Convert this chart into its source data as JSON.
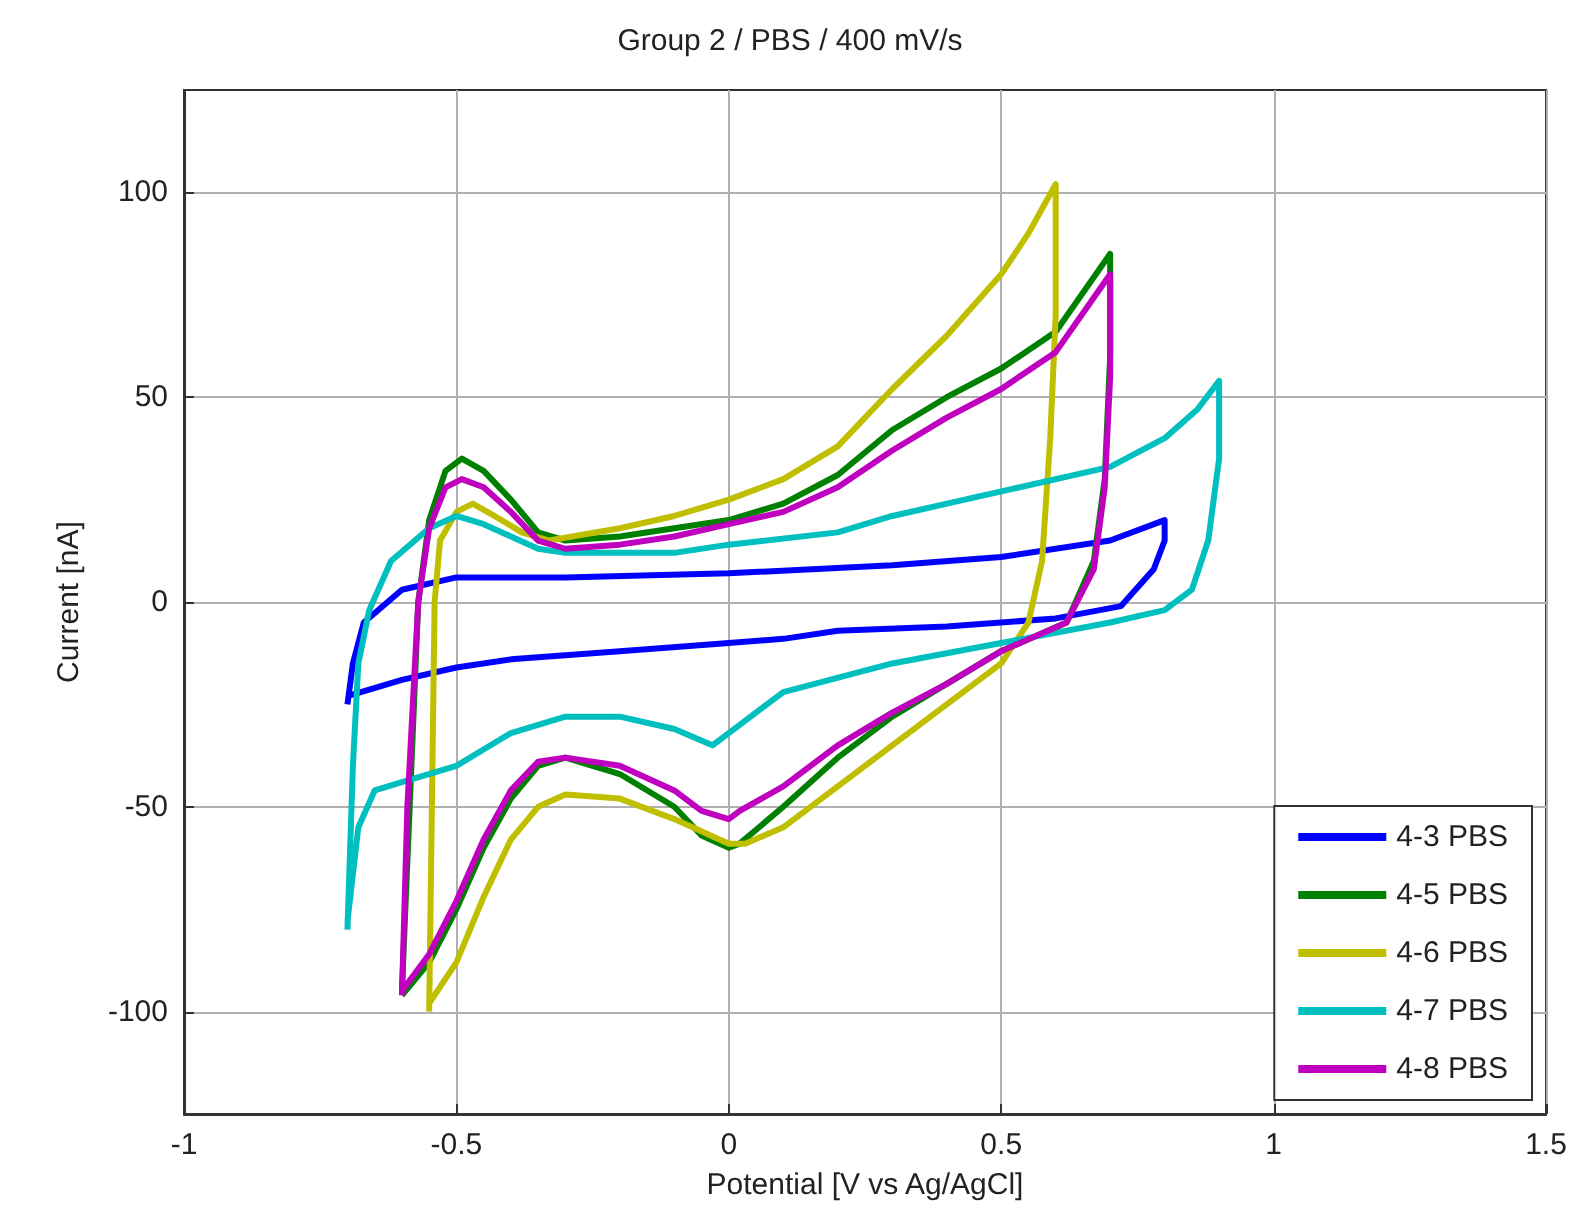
{
  "chart_data": {
    "type": "line",
    "title": "Group 2 / PBS / 400 mV/s",
    "xlabel": "Potential [V vs Ag/AgCl]",
    "ylabel": "Current [nA]",
    "xlim": [
      -1,
      1.5
    ],
    "xticks": [
      -1,
      -0.5,
      0,
      0.5,
      1,
      1.5
    ],
    "ylim": [
      -125,
      125
    ],
    "yticks": [
      -100,
      -50,
      0,
      50,
      100
    ],
    "grid": true,
    "legend": "bottom right",
    "marker": "none",
    "line_style": "solid",
    "series": [
      {
        "name": "4-3 PBS",
        "color": "#0000ff",
        "x": [
          -0.7,
          -0.69,
          -0.67,
          -0.6,
          -0.5,
          -0.3,
          0,
          0.3,
          0.5,
          0.7,
          0.8,
          0.8,
          0.78,
          0.72,
          0.6,
          0.4,
          0.2,
          0.1,
          0,
          -0.2,
          -0.4,
          -0.5,
          -0.6,
          -0.7
        ],
        "values": [
          -25,
          -15,
          -5,
          3,
          6,
          6,
          7,
          9,
          11,
          15,
          20,
          15,
          8,
          -1,
          -4,
          -6,
          -7,
          -9,
          -10,
          -12,
          -14,
          -16,
          -19,
          -23
        ]
      },
      {
        "name": "4-5 PBS",
        "color": "#008000",
        "x": [
          -0.6,
          -0.57,
          -0.55,
          -0.52,
          -0.49,
          -0.45,
          -0.4,
          -0.35,
          -0.3,
          -0.2,
          -0.1,
          0,
          0.1,
          0.2,
          0.3,
          0.4,
          0.5,
          0.6,
          0.7,
          0.7,
          0.69,
          0.67,
          0.62,
          0.5,
          0.4,
          0.3,
          0.2,
          0.1,
          0.02,
          0,
          -0.05,
          -0.1,
          -0.2,
          -0.3,
          -0.35,
          -0.4,
          -0.45,
          -0.5,
          -0.55,
          -0.6
        ],
        "values": [
          -95,
          0,
          20,
          32,
          35,
          32,
          25,
          17,
          15,
          16,
          18,
          20,
          24,
          31,
          42,
          50,
          57,
          66,
          85,
          60,
          30,
          10,
          -5,
          -12,
          -20,
          -28,
          -38,
          -50,
          -59,
          -60,
          -57,
          -50,
          -42,
          -38,
          -40,
          -48,
          -60,
          -75,
          -88,
          -96
        ]
      },
      {
        "name": "4-6 PBS",
        "color": "#bfbf00",
        "x": [
          -0.55,
          -0.545,
          -0.54,
          -0.53,
          -0.5,
          -0.47,
          -0.43,
          -0.38,
          -0.33,
          -0.2,
          -0.1,
          0,
          0.1,
          0.2,
          0.3,
          0.4,
          0.5,
          0.55,
          0.6,
          0.6,
          0.59,
          0.575,
          0.55,
          0.5,
          0.4,
          0.3,
          0.2,
          0.1,
          0.03,
          0,
          -0.1,
          -0.2,
          -0.3,
          -0.35,
          -0.4,
          -0.45,
          -0.5,
          -0.55
        ],
        "values": [
          -100,
          -50,
          0,
          15,
          22,
          24,
          21,
          17,
          15,
          18,
          21,
          25,
          30,
          38,
          52,
          65,
          80,
          90,
          102,
          70,
          40,
          10,
          -5,
          -15,
          -25,
          -35,
          -45,
          -55,
          -59,
          -59,
          -53,
          -48,
          -47,
          -50,
          -58,
          -72,
          -88,
          -98
        ]
      },
      {
        "name": "4-7 PBS",
        "color": "#00bfbf",
        "x": [
          -0.7,
          -0.69,
          -0.68,
          -0.66,
          -0.62,
          -0.55,
          -0.5,
          -0.45,
          -0.4,
          -0.35,
          -0.3,
          -0.1,
          0,
          0.2,
          0.3,
          0.5,
          0.7,
          0.8,
          0.86,
          0.9,
          0.9,
          0.88,
          0.85,
          0.8,
          0.7,
          0.5,
          0.3,
          0.1,
          0.02,
          -0.03,
          -0.1,
          -0.2,
          -0.3,
          -0.4,
          -0.5,
          -0.6,
          -0.65,
          -0.68,
          -0.7
        ],
        "values": [
          -80,
          -40,
          -15,
          -2,
          10,
          18,
          21,
          19,
          16,
          13,
          12,
          12,
          14,
          17,
          21,
          27,
          33,
          40,
          47,
          54,
          35,
          15,
          3,
          -2,
          -5,
          -10,
          -15,
          -22,
          -30,
          -35,
          -31,
          -28,
          -28,
          -32,
          -40,
          -44,
          -46,
          -55,
          -78
        ]
      },
      {
        "name": "4-8 PBS",
        "color": "#bf00bf",
        "x": [
          -0.6,
          -0.59,
          -0.57,
          -0.55,
          -0.52,
          -0.49,
          -0.45,
          -0.4,
          -0.35,
          -0.3,
          -0.2,
          -0.1,
          0,
          0.1,
          0.2,
          0.3,
          0.4,
          0.5,
          0.6,
          0.7,
          0.7,
          0.69,
          0.67,
          0.62,
          0.5,
          0.4,
          0.3,
          0.2,
          0.1,
          0.02,
          0,
          -0.05,
          -0.1,
          -0.2,
          -0.3,
          -0.35,
          -0.4,
          -0.45,
          -0.5,
          -0.55,
          -0.6
        ],
        "values": [
          -96,
          -50,
          0,
          18,
          28,
          30,
          28,
          22,
          15,
          13,
          14,
          16,
          19,
          22,
          28,
          37,
          45,
          52,
          61,
          80,
          55,
          28,
          8,
          -5,
          -12,
          -20,
          -27,
          -35,
          -45,
          -51,
          -53,
          -51,
          -46,
          -40,
          -38,
          -39,
          -46,
          -58,
          -73,
          -86,
          -95
        ]
      }
    ]
  }
}
